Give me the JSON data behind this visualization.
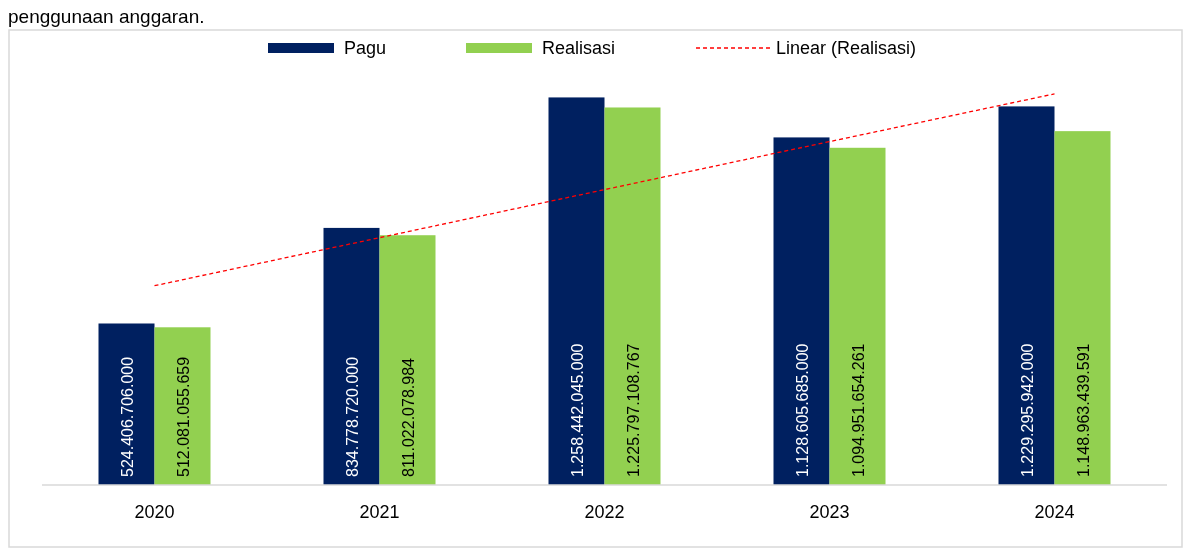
{
  "chart_data": {
    "type": "bar",
    "categories": [
      "2020",
      "2021",
      "2022",
      "2023",
      "2024"
    ],
    "series": [
      {
        "name": "Pagu",
        "color": "#002060",
        "values": [
          524406706000,
          834778720000,
          1258442045000,
          1128605685000,
          1229295942000
        ],
        "value_labels": [
          "524.406.706.000",
          "834.778.720.000",
          "1.258.442.045.000",
          "1.128.605.685.000",
          "1.229.295.942.000"
        ]
      },
      {
        "name": "Realisasi",
        "color": "#92d050",
        "values": [
          512081055659,
          811022078984,
          1225797108767,
          1094951654261,
          1148963439591
        ],
        "value_labels": [
          "512.081.055.659",
          "811.022.078.984",
          "1.225.797.108.767",
          "1.094.951.654.261",
          "1.148.963.439.591"
        ]
      },
      {
        "name": "Linear (Realisasi)",
        "type": "line",
        "color": "#ff0000",
        "line_style": "dashed",
        "values": [
          647000000000,
          803000000000,
          959000000000,
          1115000000000,
          1270000000000
        ]
      }
    ],
    "legend": "top",
    "grid": false,
    "annotations": [
      "penggunaan anggaran."
    ]
  }
}
